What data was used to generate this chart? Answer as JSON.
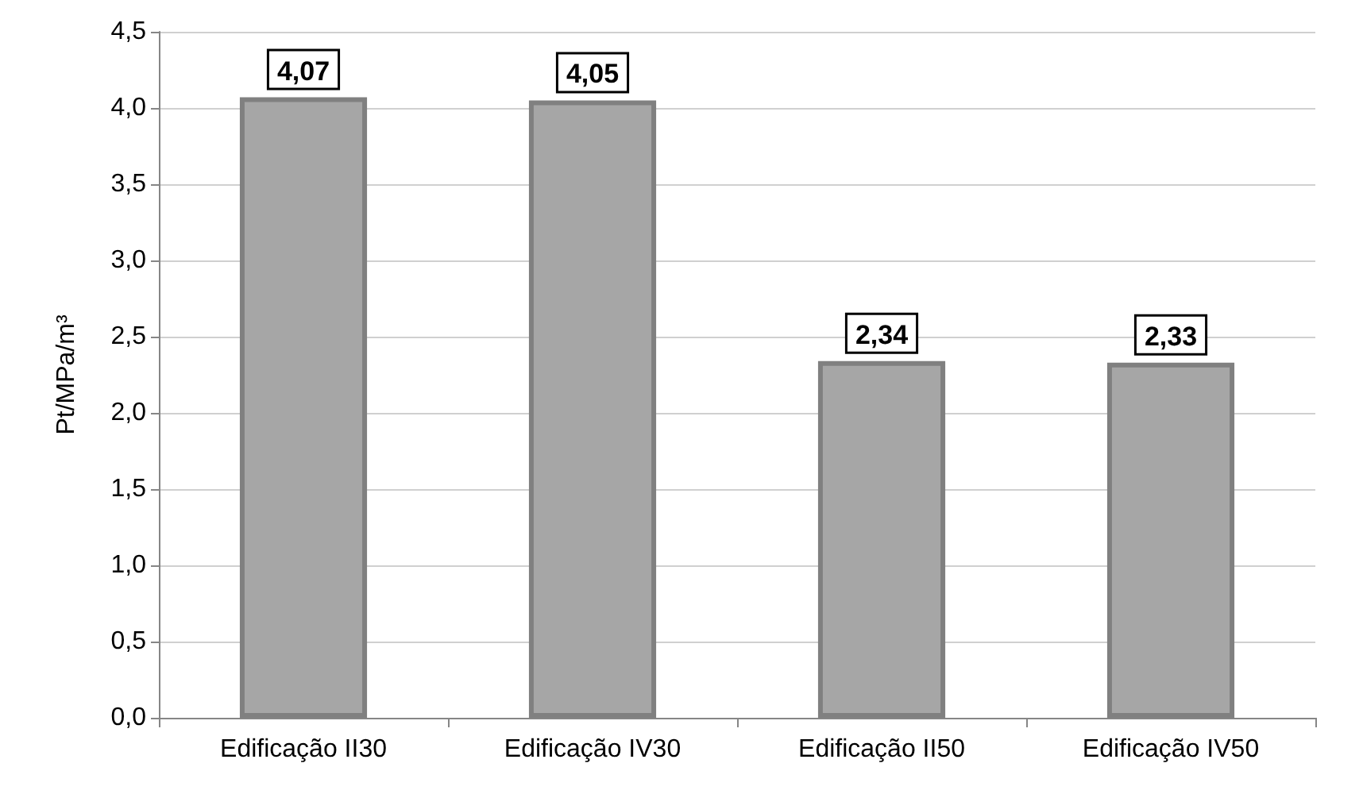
{
  "chart_data": {
    "type": "bar",
    "ylabel": "Pt/MPa/m³",
    "categories": [
      "Edificação II30",
      "Edificação IV30",
      "Edificação II50",
      "Edificação IV50"
    ],
    "values": [
      4.07,
      4.05,
      2.34,
      2.33
    ],
    "color": "#a6a6a6",
    "value_labels": [
      "4,07",
      "4,05",
      "2,34",
      "2,33"
    ],
    "ylim": [
      0,
      4.5
    ],
    "yticks": [
      {
        "value": 0,
        "label": "0,0"
      },
      {
        "value": 0.5,
        "label": "0,5"
      },
      {
        "value": 1,
        "label": "1,0"
      },
      {
        "value": 1.5,
        "label": "1,5"
      },
      {
        "value": 2,
        "label": "2,0"
      },
      {
        "value": 2.5,
        "label": "2,5"
      },
      {
        "value": 3,
        "label": "3,0"
      },
      {
        "value": 3.5,
        "label": "3,5"
      },
      {
        "value": 4,
        "label": "4,0"
      },
      {
        "value": 4.5,
        "label": "4,5"
      }
    ],
    "grid": "y"
  }
}
